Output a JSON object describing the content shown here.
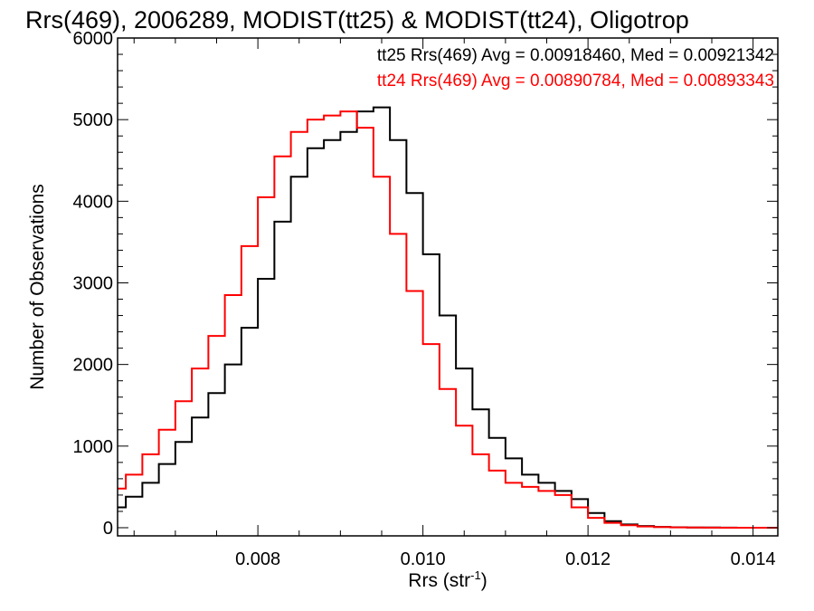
{
  "chart_data": {
    "type": "line",
    "step": true,
    "title": "Rrs(469), 2006289, MODIST(tt25) & MODIST(tt24), Oligotrop",
    "xlabel": "Rrs (str",
    "xlabel_superscript": "-1",
    "xlabel_suffix": ")",
    "ylabel": "Number of Observations",
    "xlim": [
      0.0063,
      0.0143
    ],
    "ylim": [
      -100,
      6000
    ],
    "x_ticks": [
      0.008,
      0.01,
      0.012,
      0.014
    ],
    "x_tick_labels": [
      "0.008",
      "0.010",
      "0.012",
      "0.014"
    ],
    "y_ticks": [
      0,
      1000,
      2000,
      3000,
      4000,
      5000,
      6000
    ],
    "y_tick_labels": [
      "0",
      "1000",
      "2000",
      "3000",
      "4000",
      "5000",
      "6000"
    ],
    "legend_position": "top-right",
    "annotations": [
      {
        "text": "tt25 Rrs(469) Avg = 0.00918460, Med = 0.00921342",
        "color": "#000000"
      },
      {
        "text": "tt24 Rrs(469) Avg = 0.00890784, Med = 0.00893343",
        "color": "#ff0000"
      }
    ],
    "series": [
      {
        "name": "tt25",
        "color": "#000000",
        "x": [
          0.0063,
          0.0065,
          0.0067,
          0.0069,
          0.0071,
          0.0073,
          0.0075,
          0.0077,
          0.0079,
          0.0081,
          0.0083,
          0.0085,
          0.0087,
          0.0089,
          0.0091,
          0.0093,
          0.0095,
          0.0097,
          0.0099,
          0.0101,
          0.0103,
          0.0105,
          0.0107,
          0.0109,
          0.0111,
          0.0113,
          0.0115,
          0.0117,
          0.0119,
          0.0121,
          0.0123,
          0.0125,
          0.0127,
          0.0129,
          0.0131,
          0.0133,
          0.0135,
          0.0137,
          0.0139,
          0.0141,
          0.0143
        ],
        "values": [
          250,
          380,
          550,
          780,
          1050,
          1350,
          1650,
          2000,
          2450,
          3050,
          3750,
          4300,
          4650,
          4750,
          4850,
          5100,
          5150,
          4750,
          4100,
          3350,
          2600,
          1950,
          1450,
          1100,
          850,
          650,
          550,
          450,
          350,
          180,
          80,
          40,
          20,
          10,
          5,
          3,
          2,
          1,
          0,
          0,
          0
        ]
      },
      {
        "name": "tt24",
        "color": "#ff0000",
        "x": [
          0.0063,
          0.0065,
          0.0067,
          0.0069,
          0.0071,
          0.0073,
          0.0075,
          0.0077,
          0.0079,
          0.0081,
          0.0083,
          0.0085,
          0.0087,
          0.0089,
          0.0091,
          0.0093,
          0.0095,
          0.0097,
          0.0099,
          0.0101,
          0.0103,
          0.0105,
          0.0107,
          0.0109,
          0.0111,
          0.0113,
          0.0115,
          0.0117,
          0.0119,
          0.0121,
          0.0123,
          0.0125,
          0.0127,
          0.0129,
          0.0131,
          0.0133,
          0.0135,
          0.0137,
          0.0139,
          0.0141,
          0.0143
        ],
        "values": [
          480,
          650,
          900,
          1200,
          1550,
          1950,
          2350,
          2850,
          3450,
          4050,
          4550,
          4850,
          5000,
          5050,
          5100,
          4900,
          4300,
          3600,
          2900,
          2250,
          1700,
          1250,
          900,
          700,
          550,
          500,
          450,
          400,
          250,
          120,
          60,
          30,
          15,
          8,
          4,
          2,
          1,
          0,
          0,
          0,
          0
        ]
      }
    ]
  }
}
